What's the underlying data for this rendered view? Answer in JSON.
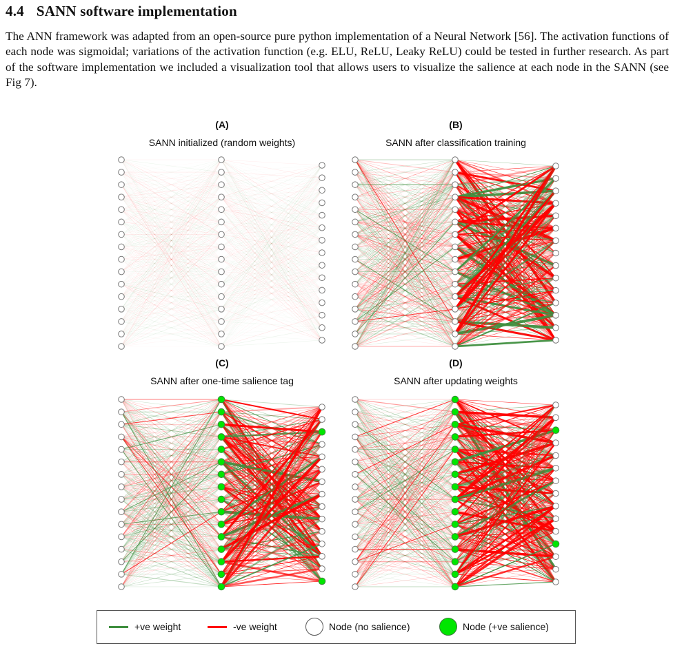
{
  "section": {
    "number": "4.4",
    "title": "SANN software implementation"
  },
  "paragraph": "The ANN framework was adapted from an open-source pure python implementation of a Neural Network [56]. The activation functions of each node was sigmoidal; variations of the activation function (e.g. ELU, ReLU, Leaky ReLU) could be tested in further research. As part of the software implementation we included a visualization tool that allows users to visualize the salience at each node in the SANN (see Fig 7).",
  "figure": {
    "panels": [
      {
        "label": "(A)",
        "title": "SANN initialized (random weights)",
        "state": "random"
      },
      {
        "label": "(B)",
        "title": "SANN after classification training",
        "state": "trained"
      },
      {
        "label": "(C)",
        "title": "SANN after one-time salience tag",
        "state": "tagged"
      },
      {
        "label": "(D)",
        "title": "SANN after updating weights",
        "state": "updated"
      }
    ],
    "layers": {
      "input_nodes": 16,
      "hidden_nodes": 16,
      "output_nodes": 15
    },
    "colors": {
      "positive_weight": "#3f8f3f",
      "negative_weight": "#ff0000",
      "node_fill": "#ffffff",
      "node_salient": "#00e600",
      "node_stroke": "#777777"
    },
    "legend": {
      "positive_label": "+ve weight",
      "negative_label": "-ve weight",
      "node_plain_label": "Node (no salience)",
      "node_salient_label": "Node (+ve salience)"
    }
  }
}
